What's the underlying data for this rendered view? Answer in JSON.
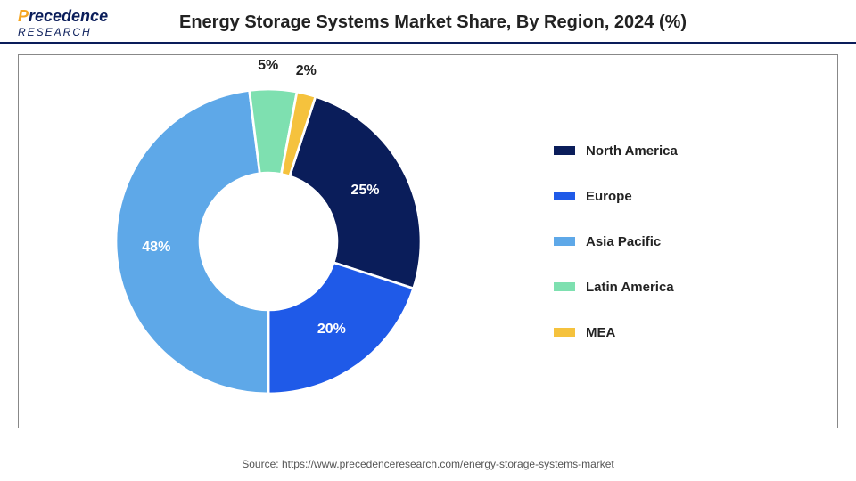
{
  "logo": {
    "brand_top": "Precedence",
    "brand_bottom": "RESEARCH"
  },
  "title": "Energy Storage Systems Market Share, By Region, 2024 (%)",
  "chart": {
    "type": "donut",
    "background_color": "#ffffff",
    "border_color": "#888888",
    "inner_radius_ratio": 0.45,
    "start_angle_deg": 18,
    "direction": "clockwise",
    "label_fontsize": 16,
    "label_fontweight": "bold",
    "slices": [
      {
        "name": "North America",
        "value": 25,
        "label": "25%",
        "color": "#0a1d5a",
        "label_color": "#ffffff"
      },
      {
        "name": "Europe",
        "value": 20,
        "label": "20%",
        "color": "#1f5ae8",
        "label_color": "#ffffff"
      },
      {
        "name": "Asia Pacific",
        "value": 48,
        "label": "48%",
        "color": "#5ea8e8",
        "label_color": "#ffffff"
      },
      {
        "name": "Latin America",
        "value": 5,
        "label": "5%",
        "color": "#7ee0b0",
        "label_color": "#222222"
      },
      {
        "name": "MEA",
        "value": 2,
        "label": "2%",
        "color": "#f5c23d",
        "label_color": "#222222"
      }
    ],
    "legend": {
      "position": "right",
      "item_gap": 34,
      "swatch_width": 24,
      "swatch_height": 10,
      "fontsize": 15,
      "fontweight": "bold"
    }
  },
  "source": "Source: https://www.precedenceresearch.com/energy-storage-systems-market"
}
